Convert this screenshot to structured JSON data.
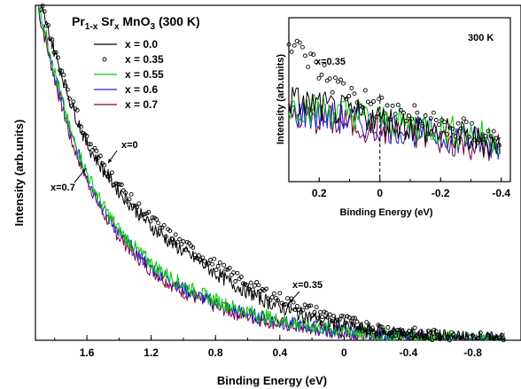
{
  "chart_data": {
    "type": "line",
    "title": {
      "base1": "Pr",
      "sub1": "1-x",
      "base2": " Sr",
      "sub2": "x",
      "base3": " MnO",
      "sub3": "3",
      "base4": "  (300 K)"
    },
    "xlabel": "Binding Energy  (eV)",
    "ylabel": "Intensity  (arb.units)",
    "xlim": [
      1.92,
      -1.1
    ],
    "ylim": [
      0,
      1
    ],
    "x_ticks": [
      {
        "value": 1.6,
        "label": "1.6"
      },
      {
        "value": 1.2,
        "label": "1.2"
      },
      {
        "value": 0.8,
        "label": "0.8"
      },
      {
        "value": 0.4,
        "label": "0.4"
      },
      {
        "value": 0,
        "label": "0"
      },
      {
        "value": -0.4,
        "label": "-0.4"
      },
      {
        "value": -0.8,
        "label": "-0.8"
      }
    ],
    "series": [
      {
        "name": "x = 0.0",
        "color": "#000000",
        "style": "line",
        "x": [
          1.9,
          1.8,
          1.7,
          1.6,
          1.5,
          1.4,
          1.3,
          1.2,
          1.1,
          1.0,
          0.9,
          0.8,
          0.7,
          0.6,
          0.5,
          0.4,
          0.3,
          0.2,
          0.1,
          0.0,
          -0.1,
          -0.2,
          -0.4,
          -0.6,
          -0.8,
          -1.0
        ],
        "y": [
          1.02,
          0.86,
          0.71,
          0.585,
          0.51,
          0.445,
          0.39,
          0.34,
          0.3,
          0.265,
          0.235,
          0.2,
          0.17,
          0.145,
          0.12,
          0.1,
          0.083,
          0.068,
          0.055,
          0.044,
          0.035,
          0.028,
          0.018,
          0.011,
          0.006,
          0.003
        ]
      },
      {
        "name": "x = 0.35",
        "color": "#000000",
        "style": "circles",
        "x": [
          1.9,
          1.8,
          1.7,
          1.6,
          1.5,
          1.4,
          1.3,
          1.2,
          1.1,
          1.0,
          0.9,
          0.8,
          0.7,
          0.6,
          0.5,
          0.4,
          0.3,
          0.2,
          0.1,
          0.0,
          -0.1,
          -0.2,
          -0.4,
          -0.6,
          -0.8,
          -1.0
        ],
        "y": [
          1.02,
          0.87,
          0.72,
          0.6,
          0.525,
          0.46,
          0.405,
          0.36,
          0.32,
          0.285,
          0.255,
          0.225,
          0.195,
          0.17,
          0.145,
          0.125,
          0.105,
          0.088,
          0.072,
          0.058,
          0.046,
          0.036,
          0.022,
          0.013,
          0.007,
          0.004
        ]
      },
      {
        "name": "x = 0.55",
        "color": "#00cc00",
        "style": "line",
        "x": [
          1.9,
          1.8,
          1.7,
          1.6,
          1.5,
          1.4,
          1.3,
          1.2,
          1.1,
          1.0,
          0.9,
          0.8,
          0.7,
          0.6,
          0.5,
          0.4,
          0.3,
          0.2,
          0.1,
          0.0,
          -0.1,
          -0.2,
          -0.4,
          -0.6,
          -0.8,
          -1.0
        ],
        "y": [
          1.0,
          0.8,
          0.62,
          0.5,
          0.4,
          0.33,
          0.275,
          0.23,
          0.195,
          0.165,
          0.14,
          0.12,
          0.1,
          0.085,
          0.072,
          0.06,
          0.05,
          0.042,
          0.035,
          0.028,
          0.022,
          0.017,
          0.011,
          0.007,
          0.004,
          0.002
        ]
      },
      {
        "name": "x = 0.6",
        "color": "#2020cc",
        "style": "line",
        "x": [
          1.9,
          1.8,
          1.7,
          1.6,
          1.5,
          1.4,
          1.3,
          1.2,
          1.1,
          1.0,
          0.9,
          0.8,
          0.7,
          0.6,
          0.5,
          0.4,
          0.3,
          0.2,
          0.1,
          0.0,
          -0.1,
          -0.2,
          -0.4,
          -0.6,
          -0.8,
          -1.0
        ],
        "y": [
          0.99,
          0.79,
          0.61,
          0.49,
          0.39,
          0.32,
          0.265,
          0.22,
          0.185,
          0.155,
          0.13,
          0.11,
          0.092,
          0.078,
          0.066,
          0.055,
          0.046,
          0.038,
          0.031,
          0.025,
          0.02,
          0.015,
          0.009,
          0.005,
          0.003,
          0.001
        ]
      },
      {
        "name": "x = 0.7",
        "color": "#800040",
        "style": "line",
        "x": [
          1.9,
          1.8,
          1.7,
          1.6,
          1.5,
          1.4,
          1.3,
          1.2,
          1.1,
          1.0,
          0.9,
          0.8,
          0.7,
          0.6,
          0.5,
          0.4,
          0.3,
          0.2,
          0.1,
          0.0,
          -0.1,
          -0.2,
          -0.4,
          -0.6,
          -0.8,
          -1.0
        ],
        "y": [
          0.98,
          0.78,
          0.6,
          0.48,
          0.38,
          0.31,
          0.255,
          0.21,
          0.175,
          0.145,
          0.122,
          0.102,
          0.085,
          0.072,
          0.06,
          0.05,
          0.042,
          0.035,
          0.028,
          0.022,
          0.017,
          0.013,
          0.008,
          0.004,
          0.002,
          0.001
        ]
      }
    ],
    "annotations": [
      {
        "text": "x=0",
        "x": 1.38,
        "y": 0.57
      },
      {
        "text": "x=0.7",
        "x": 1.78,
        "y": 0.44
      },
      {
        "text": "x=0.35",
        "x": 0.22,
        "y": 0.14
      }
    ],
    "inset": {
      "title": "300 K",
      "xlabel": "Binding  Energy  (eV)",
      "ylabel": "Intensity  (arb.units)",
      "xlim": [
        0.3,
        -0.43
      ],
      "ylim": [
        0,
        1
      ],
      "x_ticks": [
        {
          "value": 0.2,
          "label": "0.2"
        },
        {
          "value": 0,
          "label": "0"
        },
        {
          "value": -0.2,
          "label": "-0.2"
        },
        {
          "value": -0.4,
          "label": "-0.4"
        }
      ],
      "annotation": {
        "text": "x=0.35",
        "x": 0.25,
        "y": 0.84
      },
      "series": [
        {
          "name": "x = 0.0",
          "color": "#000000",
          "style": "line",
          "x": [
            0.3,
            0.2,
            0.1,
            0.0,
            -0.1,
            -0.2,
            -0.3,
            -0.4
          ],
          "y": [
            0.5,
            0.46,
            0.42,
            0.38,
            0.34,
            0.3,
            0.26,
            0.22
          ]
        },
        {
          "name": "x = 0.35",
          "color": "#000000",
          "style": "circles",
          "x": [
            0.3,
            0.25,
            0.2,
            0.15,
            0.1,
            0.05,
            0.0,
            -0.05,
            -0.1,
            -0.15,
            -0.2,
            -0.25,
            -0.3,
            -0.35,
            -0.4
          ],
          "y": [
            0.83,
            0.78,
            0.68,
            0.6,
            0.54,
            0.5,
            0.45,
            0.42,
            0.4,
            0.37,
            0.35,
            0.32,
            0.3,
            0.28,
            0.26
          ]
        },
        {
          "name": "x = 0.55",
          "color": "#00cc00",
          "style": "line",
          "x": [
            0.3,
            0.2,
            0.1,
            0.0,
            -0.1,
            -0.2,
            -0.3,
            -0.4
          ],
          "y": [
            0.46,
            0.44,
            0.41,
            0.38,
            0.35,
            0.32,
            0.29,
            0.26
          ]
        },
        {
          "name": "x = 0.6",
          "color": "#2020cc",
          "style": "line",
          "x": [
            0.3,
            0.2,
            0.1,
            0.0,
            -0.1,
            -0.2,
            -0.3,
            -0.4
          ],
          "y": [
            0.42,
            0.4,
            0.37,
            0.34,
            0.31,
            0.28,
            0.25,
            0.22
          ]
        },
        {
          "name": "x = 0.7",
          "color": "#800040",
          "style": "line",
          "x": [
            0.3,
            0.2,
            0.1,
            0.0,
            -0.1,
            -0.2,
            -0.3,
            -0.4
          ],
          "y": [
            0.4,
            0.38,
            0.35,
            0.32,
            0.29,
            0.26,
            0.23,
            0.2
          ]
        }
      ]
    }
  }
}
